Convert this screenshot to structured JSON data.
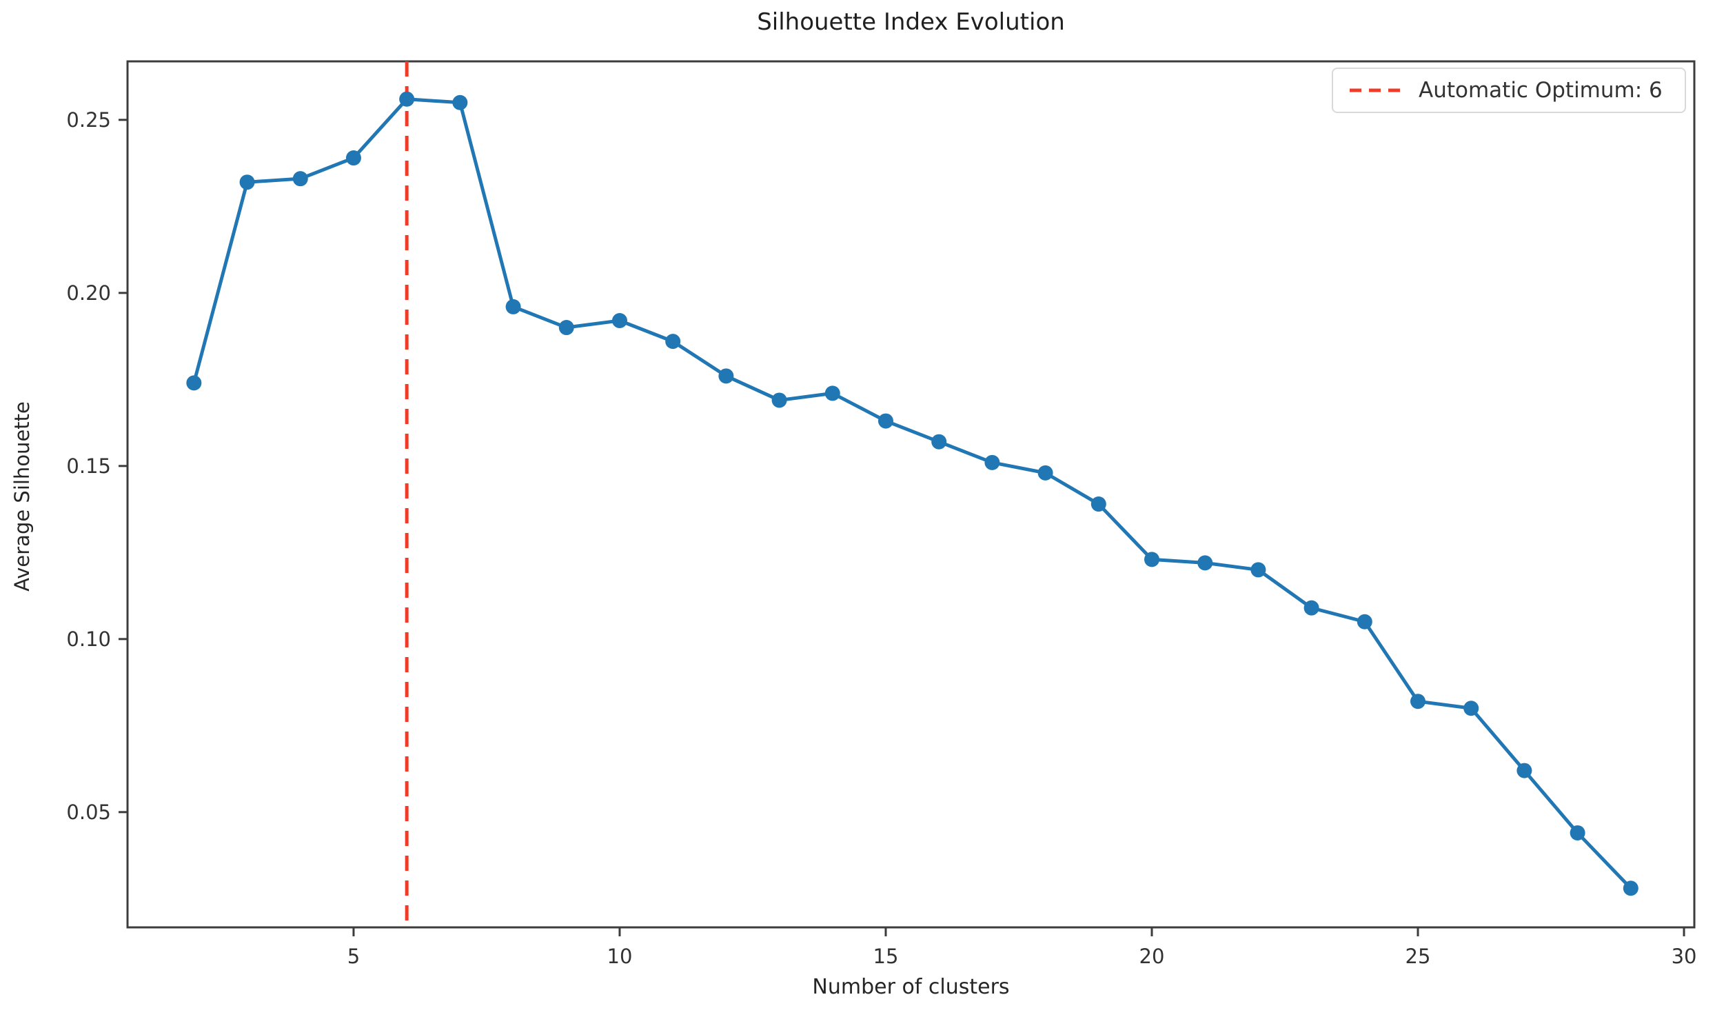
{
  "chart_data": {
    "type": "line",
    "title": "Silhouette Index Evolution",
    "xlabel": "Number of clusters",
    "ylabel": "Average Silhouette",
    "x": [
      2,
      3,
      4,
      5,
      6,
      7,
      8,
      9,
      10,
      11,
      12,
      13,
      14,
      15,
      16,
      17,
      18,
      19,
      20,
      21,
      22,
      23,
      24,
      25,
      26,
      27,
      28,
      29
    ],
    "values": [
      0.174,
      0.232,
      0.233,
      0.239,
      0.256,
      0.255,
      0.196,
      0.19,
      0.192,
      0.186,
      0.176,
      0.169,
      0.171,
      0.163,
      0.157,
      0.151,
      0.148,
      0.139,
      0.123,
      0.122,
      0.12,
      0.109,
      0.105,
      0.082,
      0.08,
      0.062,
      0.044,
      0.028
    ],
    "series_color": "#2077b4",
    "marker": "circle",
    "optimum_line": {
      "x": 6,
      "color": "#ef3b28",
      "style": "dashed"
    },
    "legend": {
      "position": "upper-right",
      "entries": [
        {
          "label": "Automatic Optimum: 6",
          "color": "#ef3b28",
          "dashed": true
        }
      ]
    },
    "x_ticks": [
      "5",
      "10",
      "15",
      "20",
      "25",
      "30"
    ],
    "x_tick_values": [
      5,
      10,
      15,
      20,
      25,
      30
    ],
    "y_ticks": [
      "0.25",
      "0.20",
      "0.15",
      "0.10",
      "0.05"
    ],
    "y_tick_values": [
      0.25,
      0.2,
      0.15,
      0.1,
      0.05
    ],
    "xlim": [
      0.752,
      30.194
    ],
    "ylim": [
      0.0167,
      0.2669
    ],
    "grid": false,
    "spine_color": "#3c3c3c",
    "tick_text_color": "#333333"
  }
}
